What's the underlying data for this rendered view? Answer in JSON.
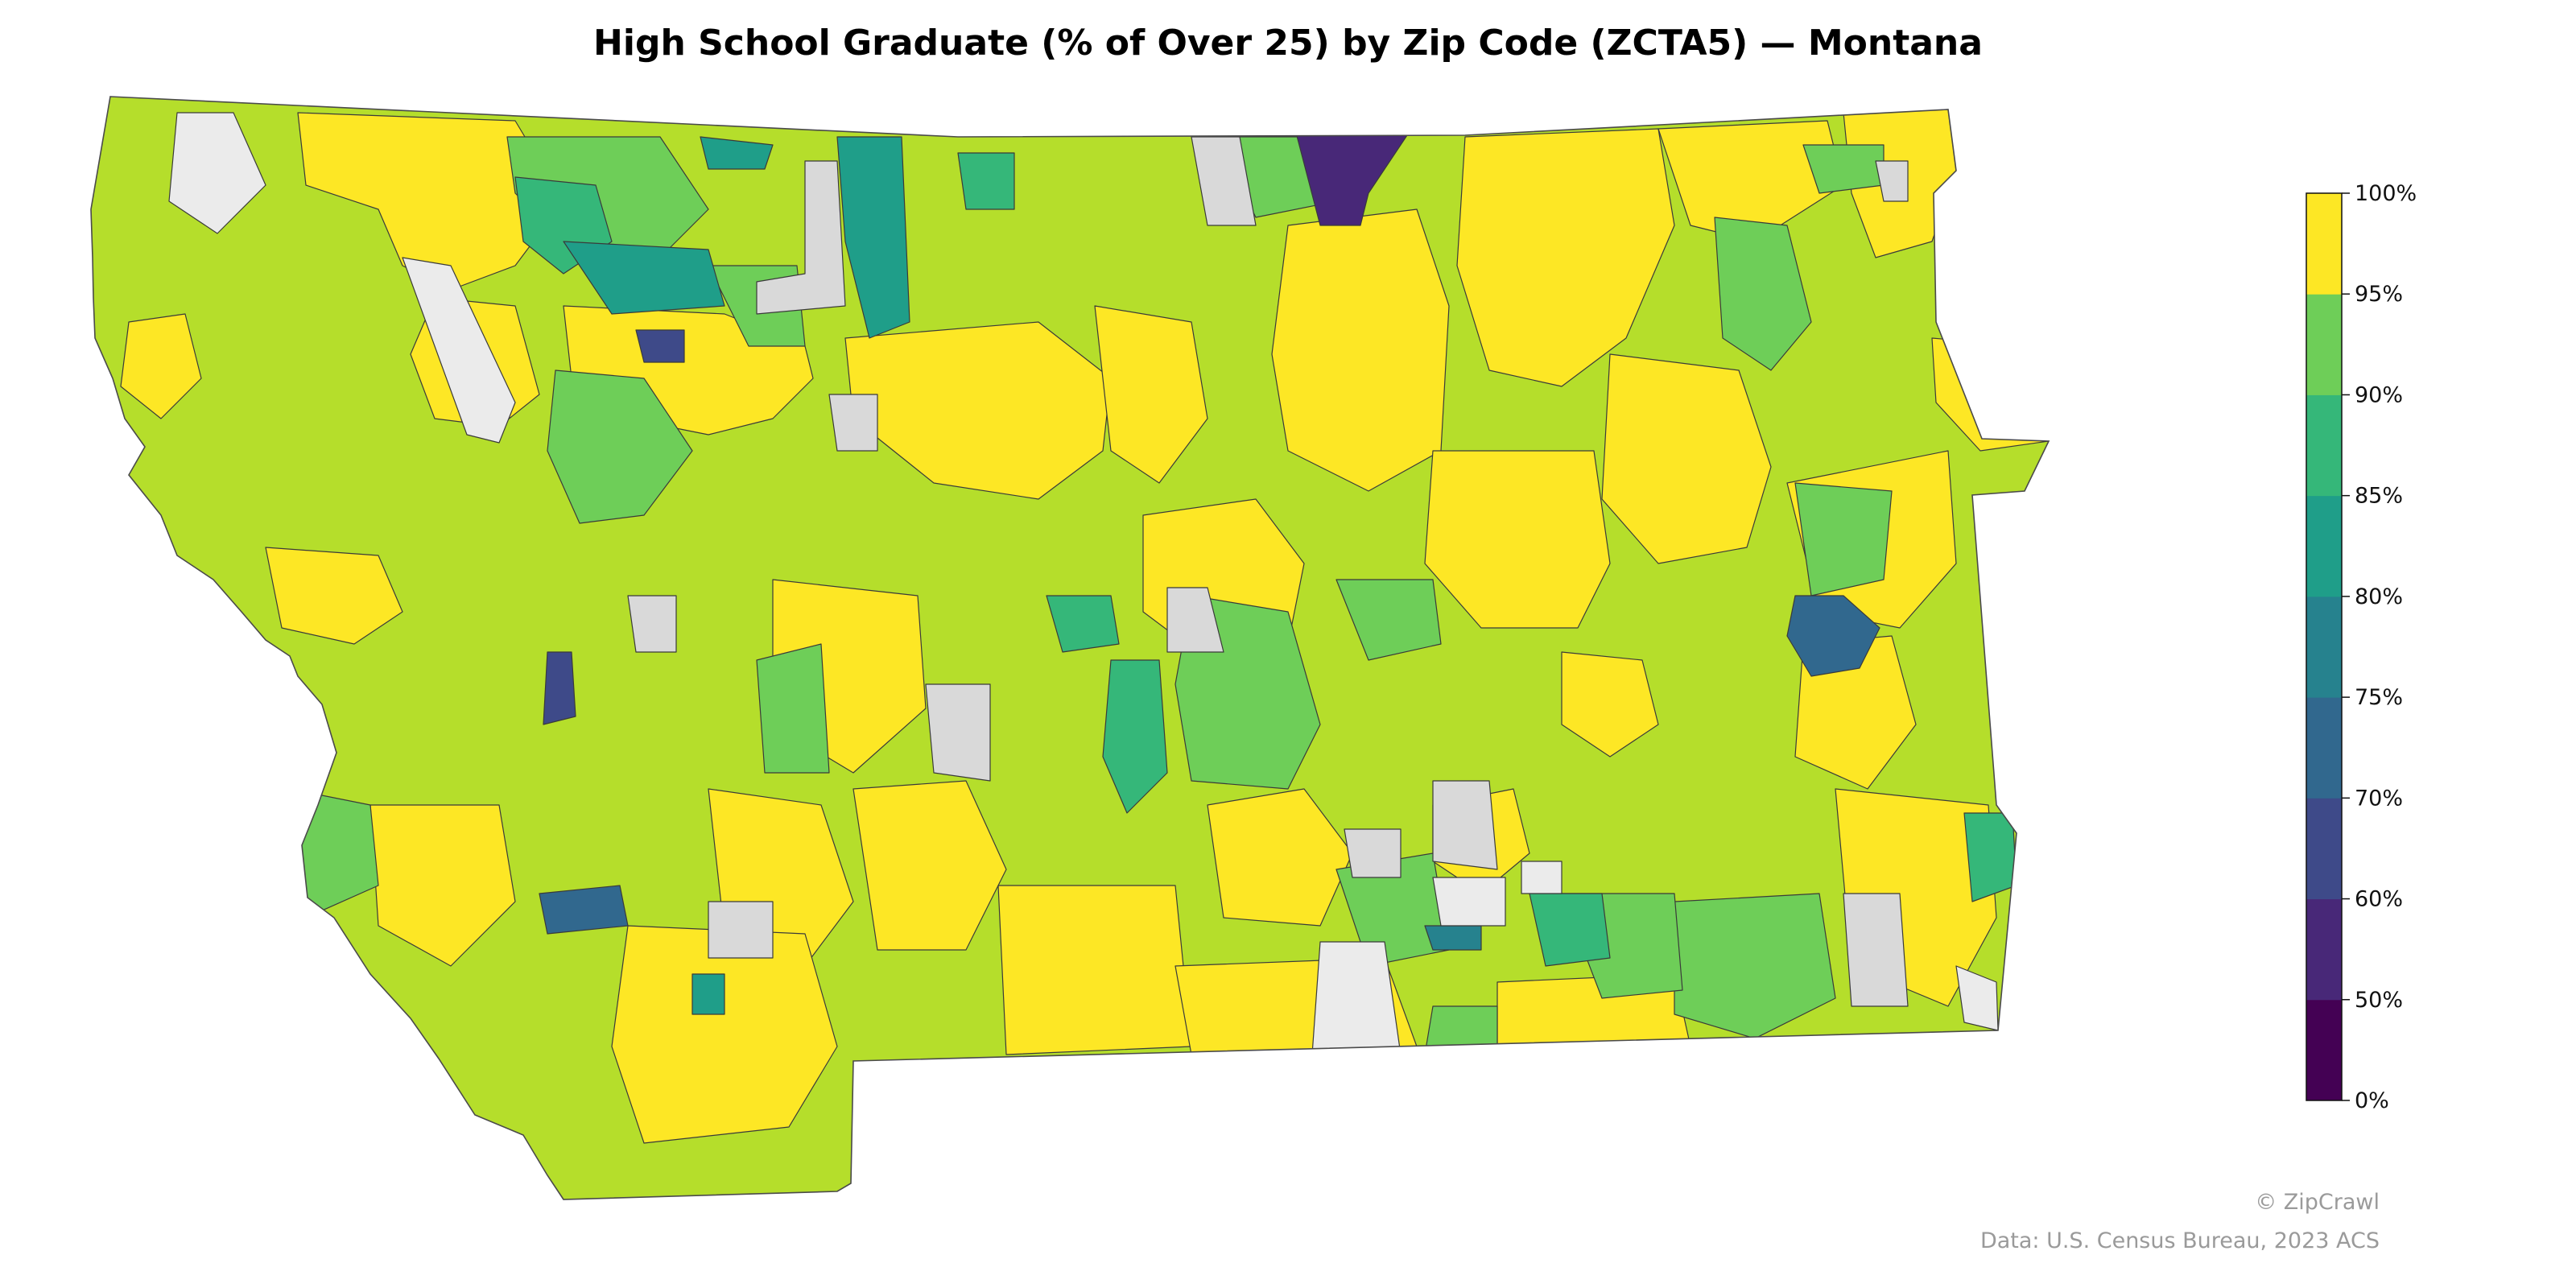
{
  "title": "High School Graduate (% of Over 25) by Zip Code (ZCTA5) — Montana",
  "credits": {
    "brand": "© ZipCrawl",
    "source": "Data: U.S. Census Bureau, 2023 ACS"
  },
  "colorbar": {
    "min": 0,
    "max": 100,
    "tick_labels": [
      "0%",
      "50%",
      "60%",
      "70%",
      "75%",
      "80%",
      "85%",
      "90%",
      "95%",
      "100%"
    ],
    "bins": [
      {
        "from": 0,
        "to": 50,
        "color": "#440154"
      },
      {
        "from": 50,
        "to": 60,
        "color": "#482878"
      },
      {
        "from": 60,
        "to": 70,
        "color": "#3e4a89"
      },
      {
        "from": 70,
        "to": 75,
        "color": "#31688e"
      },
      {
        "from": 75,
        "to": 80,
        "color": "#26828e"
      },
      {
        "from": 80,
        "to": 85,
        "color": "#1f9e89"
      },
      {
        "from": 85,
        "to": 90,
        "color": "#35b779"
      },
      {
        "from": 90,
        "to": 95,
        "color": "#6ece58"
      },
      {
        "from": 95,
        "to": 100,
        "color": "#b5de2b"
      },
      {
        "from": 100,
        "to": 100,
        "color": "#fde725"
      }
    ]
  },
  "colors": {
    "no_data": "#d9d9d9",
    "no_data_light": "#ebebeb",
    "border": "#3a3a3a"
  }
}
